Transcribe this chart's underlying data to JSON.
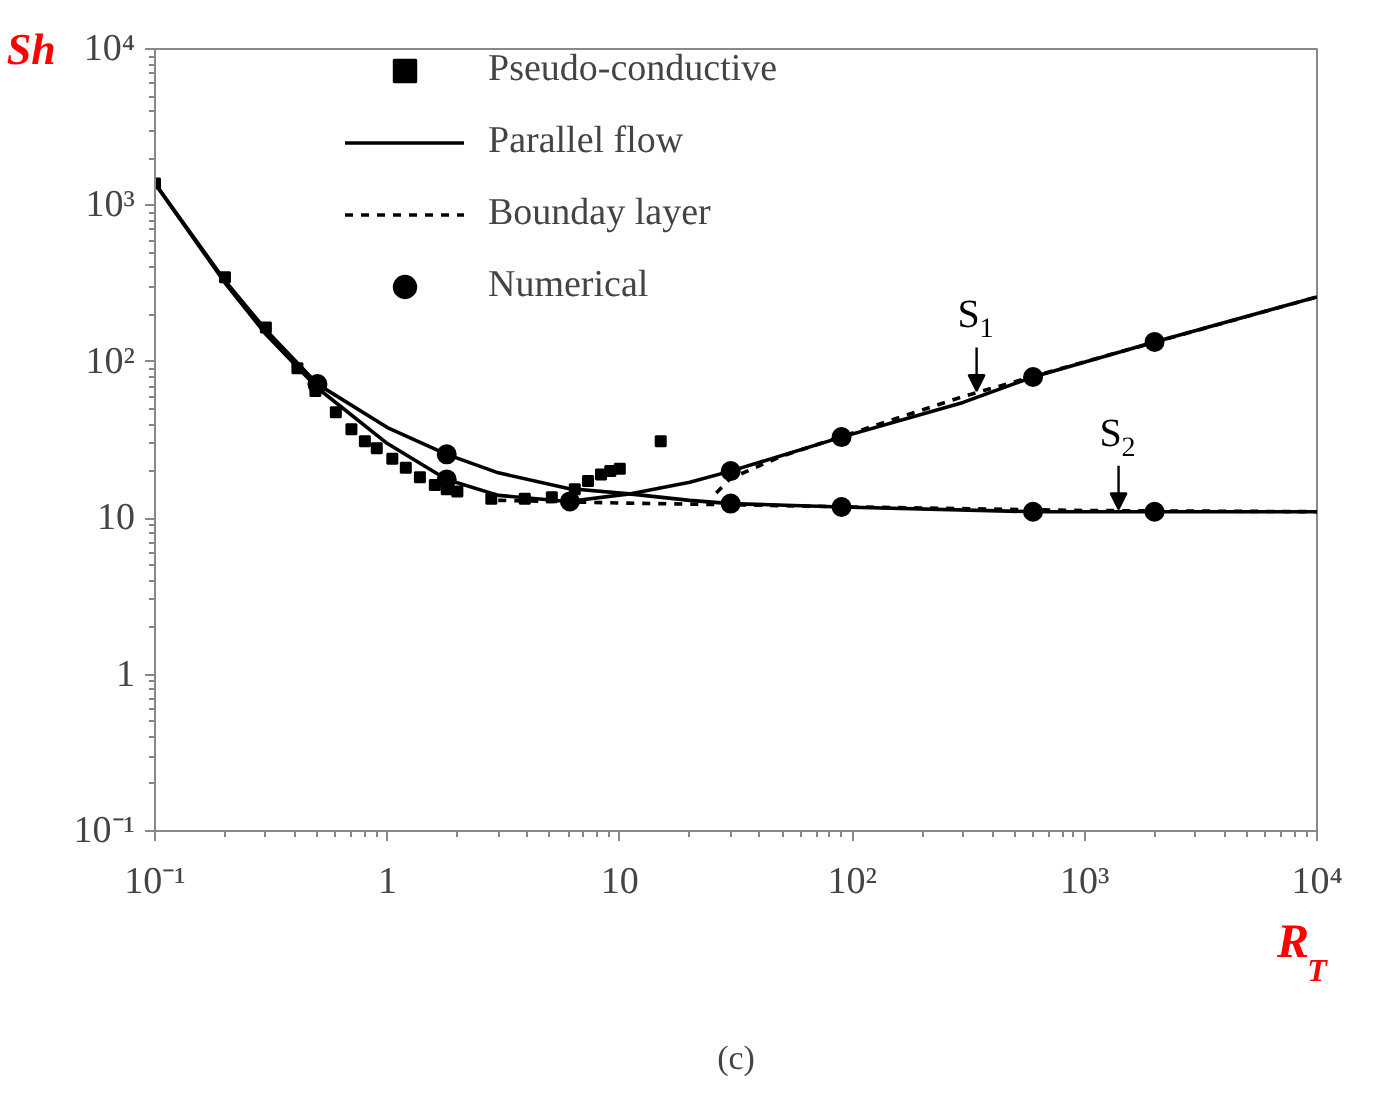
{
  "chart_data": {
    "type": "line",
    "xlabel": "R$_{T}$",
    "ylabel": "Sh",
    "log": "xy",
    "grid": false,
    "legend": "top left",
    "xlim": [
      0.1,
      10000
    ],
    "ylim": [
      0.1,
      10000
    ],
    "xticks": [
      {
        "value": 0.1,
        "label": "10⁻¹"
      },
      1,
      10,
      {
        "value": 100,
        "label": "10²"
      },
      {
        "value": 1000,
        "label": "10³"
      },
      {
        "value": 10000,
        "label": "10⁴"
      }
    ],
    "yticks": [
      {
        "value": 0.1,
        "label": "10⁻¹"
      },
      1,
      10,
      {
        "value": 100,
        "label": "10²"
      },
      {
        "value": 1000,
        "label": "10³"
      },
      {
        "value": 10000,
        "label": "10⁴"
      }
    ],
    "series": [
      {
        "name": "Pseudo-conductive",
        "type": "scatter",
        "marker": "square",
        "color": "#000000",
        "x": [
          0.1,
          0.2,
          0.3,
          0.41,
          0.49,
          0.6,
          0.7,
          0.8,
          0.9,
          1.05,
          1.2,
          1.38,
          1.6,
          1.8,
          2.0,
          2.8,
          3.9,
          5.1,
          6.4,
          7.3,
          8.3,
          9.1,
          10,
          15
        ],
        "values": [
          1380,
          347,
          166,
          91,
          65,
          47.5,
          37,
          31,
          28,
          24,
          21,
          18.3,
          16.3,
          15.3,
          14.8,
          13.3,
          13.3,
          13.6,
          15.3,
          17.3,
          19,
          20,
          20.7,
          31
        ]
      },
      {
        "name": "Parallel flow",
        "line_style": "solid",
        "color": "#000000",
        "x": [
          0.1,
          0.2,
          0.3,
          0.5,
          1,
          1.8,
          3,
          6,
          11,
          20,
          30,
          90,
          600,
          2000,
          10000
        ],
        "values": [
          1380,
          330,
          160,
          72,
          38,
          25.6,
          19.5,
          15.5,
          14.3,
          13,
          12.4,
          11.8,
          11,
          11,
          11
        ]
      },
      {
        "line_style": "solid",
        "color": "#000000",
        "x": [
          0.1,
          0.2,
          0.3,
          0.5,
          1,
          1.8,
          3,
          6,
          11,
          20,
          30,
          90,
          300,
          600,
          2000,
          10000
        ],
        "values": [
          1380,
          320,
          150,
          68,
          30,
          17.7,
          14,
          12.8,
          14.3,
          17,
          20,
          33,
          55,
          80,
          134,
          260
        ]
      },
      {
        "name": "Bounday layer",
        "line_style": "dashed",
        "color": "#000000",
        "x": [
          3,
          5,
          10,
          20,
          30,
          100,
          1000,
          10000
        ],
        "values": [
          13,
          12.8,
          12.5,
          12.3,
          12.2,
          11.8,
          11.2,
          11
        ]
      },
      {
        "line_style": "dashed",
        "color": "#000000",
        "x": [
          26,
          30,
          50,
          100,
          300,
          1000,
          10000
        ],
        "values": [
          14.5,
          18,
          25,
          35,
          60,
          100,
          260
        ]
      },
      {
        "name": "Numerical",
        "type": "scatter",
        "marker": "circle",
        "color": "#000000",
        "x": [
          0.5,
          1.8,
          1.8,
          6.1,
          30,
          30,
          90,
          90,
          600,
          600,
          2000,
          2000
        ],
        "values": [
          72,
          25.6,
          17.7,
          12.8,
          20,
          12.4,
          33,
          11.8,
          80,
          11,
          134,
          11
        ]
      }
    ],
    "annotations": [
      {
        "text": "S$_{1}$",
        "x": 343,
        "y": 65
      },
      {
        "text": "S$_{2}$",
        "x": 1400,
        "y": 11.4
      },
      "(c)"
    ]
  }
}
